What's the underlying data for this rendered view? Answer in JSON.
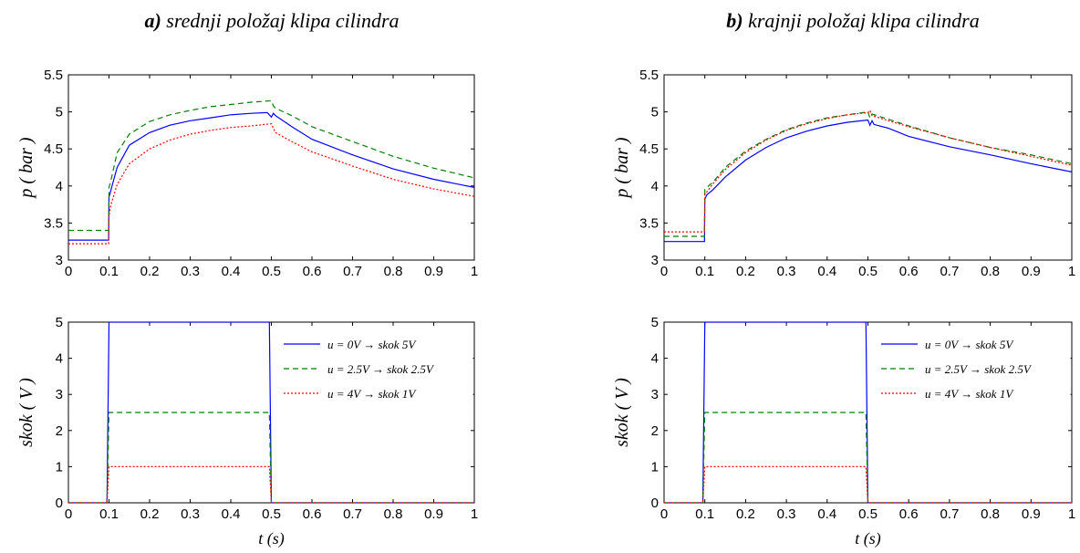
{
  "figure": {
    "title_a": "a) srednji položaj klipa cilindra",
    "title_a_prefix": "a)",
    "title_a_rest": " srednji položaj klipa cilindra",
    "title_b_prefix": "b)",
    "title_b_rest": " krajnji položaj klipa cilindra"
  },
  "colors": {
    "u0": "#0000ff",
    "u25": "#007f00",
    "u4": "#ff0000"
  },
  "chart_data": [
    {
      "id": "a-pressure",
      "type": "line",
      "ylabel": "p  ( bar )",
      "xlabel": "",
      "xlim": [
        0,
        1
      ],
      "ylim": [
        3,
        5.5
      ],
      "xticks": [
        0,
        0.1,
        0.2,
        0.3,
        0.4,
        0.5,
        0.6,
        0.7,
        0.8,
        0.9,
        1
      ],
      "yticks": [
        3,
        3.5,
        4,
        4.5,
        5,
        5.5
      ],
      "series": [
        {
          "color": "#0000ff",
          "dash": "",
          "x": [
            0,
            0.099,
            0.1,
            0.105,
            0.12,
            0.15,
            0.2,
            0.25,
            0.3,
            0.35,
            0.4,
            0.45,
            0.49,
            0.5,
            0.505,
            0.51,
            0.55,
            0.6,
            0.7,
            0.8,
            0.9,
            1.0
          ],
          "y": [
            3.27,
            3.27,
            3.85,
            3.95,
            4.25,
            4.55,
            4.72,
            4.82,
            4.88,
            4.92,
            4.96,
            4.98,
            4.99,
            4.93,
            4.98,
            4.95,
            4.8,
            4.63,
            4.42,
            4.23,
            4.09,
            3.98
          ]
        },
        {
          "color": "#007f00",
          "dash": "6,4",
          "x": [
            0,
            0.099,
            0.1,
            0.105,
            0.12,
            0.15,
            0.2,
            0.25,
            0.3,
            0.35,
            0.4,
            0.45,
            0.5,
            0.505,
            0.51,
            0.55,
            0.6,
            0.7,
            0.8,
            0.9,
            1.0
          ],
          "y": [
            3.4,
            3.4,
            3.98,
            4.08,
            4.45,
            4.7,
            4.87,
            4.96,
            5.02,
            5.07,
            5.1,
            5.13,
            5.15,
            5.08,
            5.05,
            4.95,
            4.8,
            4.6,
            4.4,
            4.24,
            4.11
          ]
        },
        {
          "color": "#ff0000",
          "dash": "2,2",
          "x": [
            0,
            0.099,
            0.1,
            0.105,
            0.12,
            0.15,
            0.2,
            0.25,
            0.3,
            0.35,
            0.4,
            0.45,
            0.5,
            0.505,
            0.51,
            0.55,
            0.6,
            0.7,
            0.8,
            0.9,
            1.0
          ],
          "y": [
            3.22,
            3.22,
            3.6,
            3.75,
            4.02,
            4.3,
            4.5,
            4.62,
            4.7,
            4.75,
            4.79,
            4.81,
            4.84,
            4.78,
            4.72,
            4.6,
            4.46,
            4.27,
            4.09,
            3.96,
            3.86
          ]
        }
      ]
    },
    {
      "id": "a-step",
      "type": "line",
      "ylabel": "skok  ( V )",
      "xlabel": "t (s)",
      "xlim": [
        0,
        1
      ],
      "ylim": [
        0,
        5
      ],
      "xticks": [
        0,
        0.1,
        0.2,
        0.3,
        0.4,
        0.5,
        0.6,
        0.7,
        0.8,
        0.9,
        1
      ],
      "yticks": [
        0,
        1,
        2,
        3,
        4,
        5
      ],
      "legend": {
        "position": "top-right"
      },
      "series": [
        {
          "name": "u = 0V → skok 5V",
          "color": "#0000ff",
          "dash": "",
          "x": [
            0,
            0.095,
            0.1,
            0.495,
            0.5,
            1.0
          ],
          "y": [
            0,
            0,
            5,
            5,
            0,
            0
          ]
        },
        {
          "name": "u = 2.5V → skok 2.5V",
          "color": "#007f00",
          "dash": "6,4",
          "x": [
            0,
            0.095,
            0.1,
            0.495,
            0.5,
            1.0
          ],
          "y": [
            0,
            0,
            2.5,
            2.5,
            0,
            0
          ]
        },
        {
          "name": "u = 4V → skok 1V",
          "color": "#ff0000",
          "dash": "2,2",
          "x": [
            0,
            0.095,
            0.1,
            0.495,
            0.5,
            1.0
          ],
          "y": [
            0,
            0,
            1,
            1,
            0,
            0
          ]
        }
      ]
    },
    {
      "id": "b-pressure",
      "type": "line",
      "ylabel": "p  ( bar )",
      "xlabel": "",
      "xlim": [
        0,
        1
      ],
      "ylim": [
        3,
        5.5
      ],
      "xticks": [
        0,
        0.1,
        0.2,
        0.3,
        0.4,
        0.5,
        0.6,
        0.7,
        0.8,
        0.9,
        1
      ],
      "yticks": [
        3,
        3.5,
        4,
        4.5,
        5,
        5.5
      ],
      "series": [
        {
          "color": "#0000ff",
          "dash": "",
          "x": [
            0,
            0.099,
            0.1,
            0.105,
            0.12,
            0.15,
            0.2,
            0.25,
            0.3,
            0.35,
            0.4,
            0.45,
            0.5,
            0.505,
            0.51,
            0.515,
            0.55,
            0.6,
            0.7,
            0.8,
            0.9,
            1.0
          ],
          "y": [
            3.25,
            3.25,
            3.82,
            3.88,
            3.95,
            4.12,
            4.35,
            4.52,
            4.65,
            4.74,
            4.81,
            4.86,
            4.89,
            4.82,
            4.88,
            4.83,
            4.78,
            4.67,
            4.53,
            4.42,
            4.3,
            4.19
          ]
        },
        {
          "color": "#007f00",
          "dash": "6,4",
          "x": [
            0,
            0.099,
            0.1,
            0.105,
            0.12,
            0.15,
            0.2,
            0.25,
            0.3,
            0.35,
            0.4,
            0.45,
            0.5,
            0.505,
            0.51,
            0.55,
            0.6,
            0.7,
            0.8,
            0.9,
            1.0
          ],
          "y": [
            3.32,
            3.32,
            3.95,
            3.98,
            4.05,
            4.25,
            4.47,
            4.63,
            4.76,
            4.85,
            4.92,
            4.96,
            5.0,
            4.92,
            4.97,
            4.9,
            4.81,
            4.65,
            4.52,
            4.42,
            4.3
          ]
        },
        {
          "color": "#ff0000",
          "dash": "2,2",
          "x": [
            0,
            0.099,
            0.1,
            0.105,
            0.12,
            0.15,
            0.2,
            0.25,
            0.3,
            0.35,
            0.4,
            0.45,
            0.5,
            0.505,
            0.51,
            0.55,
            0.6,
            0.7,
            0.8,
            0.9,
            1.0
          ],
          "y": [
            3.38,
            3.38,
            3.88,
            3.92,
            4.03,
            4.22,
            4.45,
            4.62,
            4.75,
            4.84,
            4.91,
            4.96,
            4.99,
            5.02,
            4.95,
            4.88,
            4.8,
            4.65,
            4.52,
            4.4,
            4.28
          ]
        }
      ]
    },
    {
      "id": "b-step",
      "type": "line",
      "ylabel": "skok  ( V )",
      "xlabel": "t (s)",
      "xlim": [
        0,
        1
      ],
      "ylim": [
        0,
        5
      ],
      "xticks": [
        0,
        0.1,
        0.2,
        0.3,
        0.4,
        0.5,
        0.6,
        0.7,
        0.8,
        0.9,
        1
      ],
      "yticks": [
        0,
        1,
        2,
        3,
        4,
        5
      ],
      "legend": {
        "position": "top-right"
      },
      "series": [
        {
          "name": "u = 0V → skok 5V",
          "color": "#0000ff",
          "dash": "",
          "x": [
            0,
            0.095,
            0.1,
            0.495,
            0.5,
            1.0
          ],
          "y": [
            0,
            0,
            5,
            5,
            0,
            0
          ]
        },
        {
          "name": "u = 2.5V → skok 2.5V",
          "color": "#007f00",
          "dash": "6,4",
          "x": [
            0,
            0.095,
            0.1,
            0.495,
            0.5,
            1.0
          ],
          "y": [
            0,
            0,
            2.5,
            2.5,
            0,
            0
          ]
        },
        {
          "name": "u = 4V → skok 1V",
          "color": "#ff0000",
          "dash": "2,2",
          "x": [
            0,
            0.095,
            0.1,
            0.495,
            0.5,
            1.0
          ],
          "y": [
            0,
            0,
            1,
            1,
            0,
            0
          ]
        }
      ]
    }
  ]
}
